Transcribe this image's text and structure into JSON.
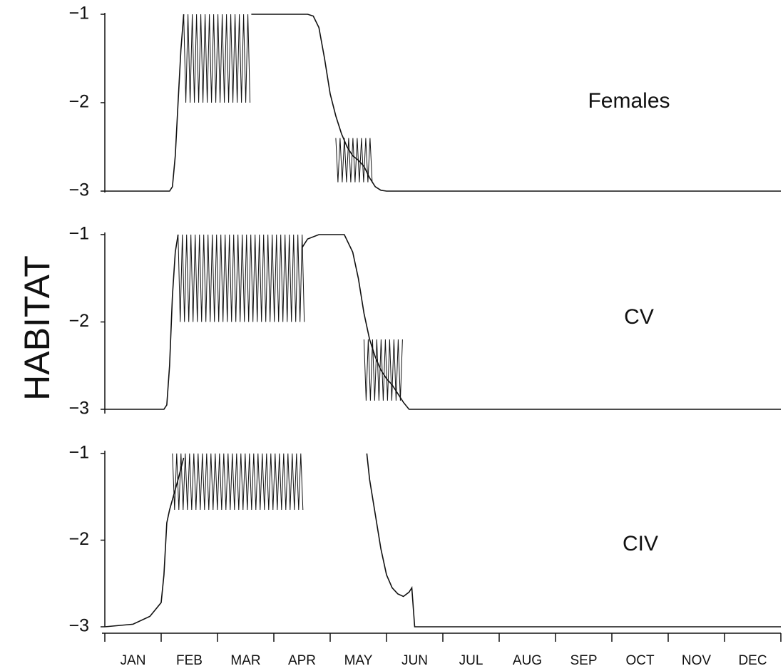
{
  "figure": {
    "ylabel": "HABITAT",
    "colors": {
      "line": "#111111",
      "background": "#ffffff"
    }
  },
  "chart_data": {
    "type": "line",
    "ylabel": "HABITAT",
    "months": [
      "JAN",
      "FEB",
      "MAR",
      "APR",
      "MAY",
      "JUN",
      "JUL",
      "AUG",
      "SEP",
      "OCT",
      "NOV",
      "DEC"
    ],
    "xlim": [
      0,
      12
    ],
    "ylim": [
      -3,
      -1
    ],
    "yticks": [
      -1,
      -2,
      -3
    ],
    "grid": false,
    "panels": [
      {
        "label": "Females",
        "series": [
          {
            "x": [
              0,
              1.15,
              1.2,
              1.25,
              1.3,
              1.35,
              1.4
            ],
            "y": [
              -3,
              -3,
              -2.95,
              -2.6,
              -2.0,
              -1.4,
              -1.0
            ]
          },
          {
            "x": [
              2.6,
              3.6,
              3.7,
              3.8,
              3.9,
              4.0,
              4.1,
              4.2,
              4.3,
              4.4,
              4.5,
              4.6,
              4.7,
              4.8,
              4.9,
              5.0,
              5.1,
              5.3,
              12
            ],
            "y": [
              -1,
              -1,
              -1.02,
              -1.15,
              -1.5,
              -1.9,
              -2.15,
              -2.35,
              -2.5,
              -2.6,
              -2.65,
              -2.72,
              -2.85,
              -2.95,
              -2.99,
              -3,
              -3,
              -3,
              -3
            ]
          }
        ],
        "bands": [
          {
            "x_start": 1.4,
            "x_end": 2.6,
            "upper": -1.0,
            "lower": -2.0
          },
          {
            "x_start": 4.1,
            "x_end": 4.75,
            "upper": -2.4,
            "lower": -2.9
          }
        ]
      },
      {
        "label": "CV",
        "series": [
          {
            "x": [
              0,
              1.05,
              1.1,
              1.15,
              1.2,
              1.25,
              1.3
            ],
            "y": [
              -3,
              -3,
              -2.95,
              -2.5,
              -1.7,
              -1.2,
              -1.0
            ]
          },
          {
            "x": [
              3.5,
              3.6,
              3.8,
              4.0,
              4.25,
              4.4,
              4.5,
              4.6,
              4.7,
              4.8,
              4.9,
              5.0,
              5.1,
              5.2,
              5.3,
              5.4,
              5.5,
              12
            ],
            "y": [
              -1.15,
              -1.05,
              -1.0,
              -1.0,
              -1.0,
              -1.2,
              -1.5,
              -1.9,
              -2.2,
              -2.4,
              -2.55,
              -2.65,
              -2.72,
              -2.82,
              -2.92,
              -3,
              -3,
              -3
            ]
          }
        ],
        "bands": [
          {
            "x_start": 1.3,
            "x_end": 3.55,
            "upper": -1.0,
            "lower": -2.0
          },
          {
            "x_start": 4.6,
            "x_end": 5.3,
            "upper": -2.2,
            "lower": -2.9
          }
        ]
      },
      {
        "label": "CIV",
        "series": [
          {
            "x": [
              0,
              0.5,
              0.8,
              0.9,
              1.0,
              1.05,
              1.1,
              1.15,
              1.3,
              1.4
            ],
            "y": [
              -3,
              -2.97,
              -2.88,
              -2.8,
              -2.72,
              -2.4,
              -1.8,
              -1.65,
              -1.3,
              -1.05
            ]
          },
          {
            "x": [
              4.65,
              4.7,
              4.8,
              4.9,
              5.0,
              5.1,
              5.2,
              5.3,
              5.4,
              5.45,
              5.5,
              12
            ],
            "y": [
              -1.0,
              -1.3,
              -1.7,
              -2.1,
              -2.4,
              -2.55,
              -2.62,
              -2.65,
              -2.6,
              -2.55,
              -3,
              -3
            ]
          }
        ],
        "bands": [
          {
            "x_start": 1.2,
            "x_end": 3.55,
            "upper": -1.0,
            "lower": -1.65
          }
        ]
      }
    ]
  }
}
